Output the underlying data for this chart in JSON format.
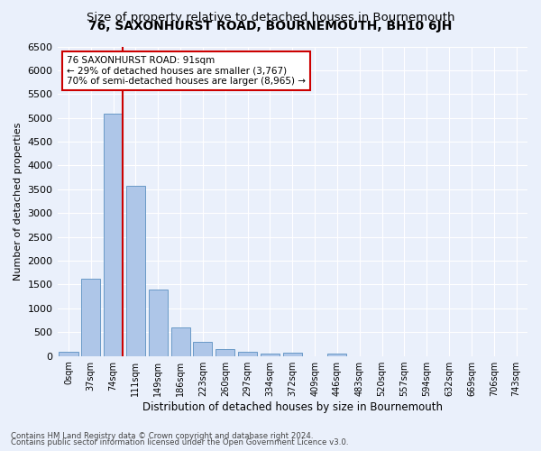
{
  "title": "76, SAXONHURST ROAD, BOURNEMOUTH, BH10 6JH",
  "subtitle": "Size of property relative to detached houses in Bournemouth",
  "xlabel": "Distribution of detached houses by size in Bournemouth",
  "ylabel": "Number of detached properties",
  "footnote1": "Contains HM Land Registry data © Crown copyright and database right 2024.",
  "footnote2": "Contains public sector information licensed under the Open Government Licence v3.0.",
  "bar_labels": [
    "0sqm",
    "37sqm",
    "74sqm",
    "111sqm",
    "149sqm",
    "186sqm",
    "223sqm",
    "260sqm",
    "297sqm",
    "334sqm",
    "372sqm",
    "409sqm",
    "446sqm",
    "483sqm",
    "520sqm",
    "557sqm",
    "594sqm",
    "632sqm",
    "669sqm",
    "706sqm",
    "743sqm"
  ],
  "bar_values": [
    80,
    1620,
    5080,
    3580,
    1400,
    590,
    300,
    145,
    80,
    55,
    60,
    0,
    55,
    0,
    0,
    0,
    0,
    0,
    0,
    0,
    0
  ],
  "bar_color": "#aec6e8",
  "bar_edge_color": "#5a8fc0",
  "ylim": [
    0,
    6500
  ],
  "yticks": [
    0,
    500,
    1000,
    1500,
    2000,
    2500,
    3000,
    3500,
    4000,
    4500,
    5000,
    5500,
    6000,
    6500
  ],
  "red_line_index": 2,
  "annotation_line1": "76 SAXONHURST ROAD: 91sqm",
  "annotation_line2": "← 29% of detached houses are smaller (3,767)",
  "annotation_line3": "70% of semi-detached houses are larger (8,965) →",
  "annotation_box_color": "#ffffff",
  "annotation_border_color": "#cc0000",
  "bg_color": "#eaf0fb",
  "grid_color": "#ffffff",
  "title_fontsize": 10,
  "subtitle_fontsize": 9.5
}
